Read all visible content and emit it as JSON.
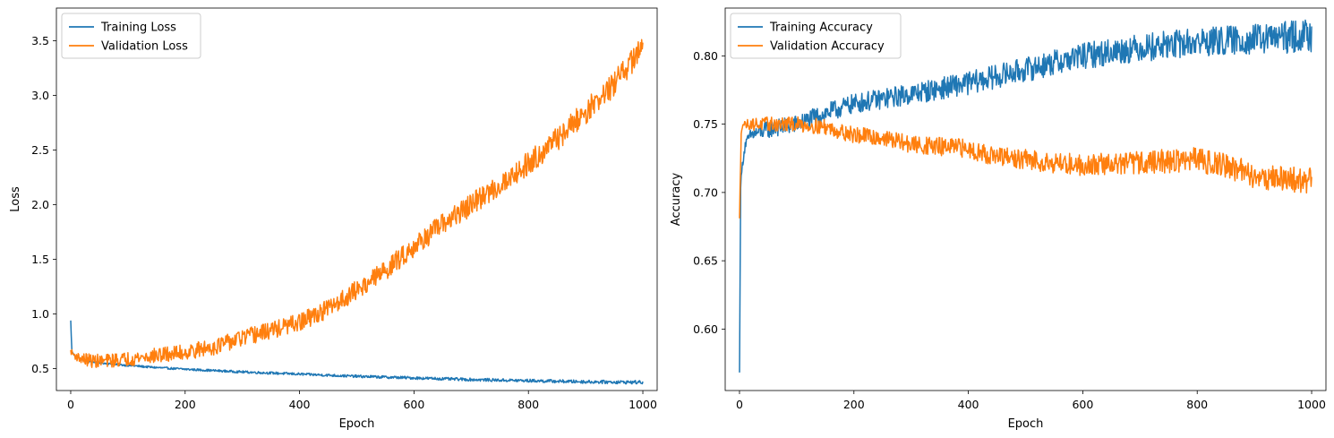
{
  "chart_data": [
    {
      "type": "line",
      "title": "",
      "xlabel": "Epoch",
      "ylabel": "Loss",
      "xlim": [
        -25,
        1025
      ],
      "ylim": [
        0.3,
        3.8
      ],
      "xticks": [
        0,
        200,
        400,
        600,
        800,
        1000
      ],
      "yticks": [
        0.5,
        1.0,
        1.5,
        2.0,
        2.5,
        3.0,
        3.5
      ],
      "xtick_labels": [
        "0",
        "200",
        "400",
        "600",
        "800",
        "1000"
      ],
      "ytick_labels": [
        "0.5",
        "1.0",
        "1.5",
        "2.0",
        "2.5",
        "3.0",
        "3.5"
      ],
      "grid": false,
      "legend": "upper left",
      "series": [
        {
          "name": "Training Loss",
          "color": "#1f77b4",
          "noise": 0.008,
          "x": [
            0,
            2,
            5,
            10,
            20,
            30,
            50,
            75,
            100,
            150,
            200,
            300,
            400,
            500,
            600,
            700,
            800,
            900,
            1000
          ],
          "y": [
            0.94,
            0.66,
            0.63,
            0.61,
            0.585,
            0.57,
            0.555,
            0.54,
            0.53,
            0.51,
            0.495,
            0.47,
            0.45,
            0.43,
            0.415,
            0.4,
            0.39,
            0.38,
            0.375
          ]
        },
        {
          "name": "Validation Loss",
          "color": "#ff7f0e",
          "noise": 0.06,
          "x": [
            0,
            5,
            10,
            20,
            40,
            60,
            100,
            150,
            200,
            250,
            300,
            350,
            400,
            450,
            500,
            550,
            600,
            650,
            700,
            750,
            800,
            850,
            900,
            950,
            1000
          ],
          "y": [
            0.66,
            0.63,
            0.61,
            0.59,
            0.57,
            0.57,
            0.59,
            0.62,
            0.65,
            0.7,
            0.78,
            0.85,
            0.92,
            1.05,
            1.22,
            1.4,
            1.62,
            1.82,
            2.0,
            2.18,
            2.38,
            2.6,
            2.85,
            3.1,
            3.45
          ]
        }
      ]
    },
    {
      "type": "line",
      "title": "",
      "xlabel": "Epoch",
      "ylabel": "Accuracy",
      "xlim": [
        -25,
        1025
      ],
      "ylim": [
        0.555,
        0.835
      ],
      "xticks": [
        0,
        200,
        400,
        600,
        800,
        1000
      ],
      "yticks": [
        0.6,
        0.65,
        0.7,
        0.75,
        0.8
      ],
      "xtick_labels": [
        "0",
        "200",
        "400",
        "600",
        "800",
        "1000"
      ],
      "ytick_labels": [
        "0.60",
        "0.65",
        "0.70",
        "0.75",
        "0.80"
      ],
      "grid": false,
      "legend": "upper left",
      "series": [
        {
          "name": "Training Accuracy",
          "color": "#1f77b4",
          "noise": 0.006,
          "x": [
            0,
            2,
            5,
            10,
            20,
            40,
            60,
            100,
            150,
            200,
            300,
            400,
            500,
            600,
            700,
            800,
            900,
            1000
          ],
          "y": [
            0.567,
            0.705,
            0.72,
            0.735,
            0.742,
            0.745,
            0.747,
            0.75,
            0.758,
            0.765,
            0.772,
            0.78,
            0.79,
            0.8,
            0.806,
            0.81,
            0.812,
            0.815
          ]
        },
        {
          "name": "Validation Accuracy",
          "color": "#ff7f0e",
          "noise": 0.005,
          "x": [
            0,
            3,
            5,
            10,
            50,
            100,
            150,
            200,
            250,
            300,
            400,
            450,
            500,
            600,
            700,
            800,
            850,
            900,
            1000
          ],
          "y": [
            0.68,
            0.745,
            0.75,
            0.75,
            0.75,
            0.75,
            0.748,
            0.742,
            0.74,
            0.735,
            0.732,
            0.726,
            0.724,
            0.72,
            0.722,
            0.724,
            0.72,
            0.712,
            0.708
          ]
        }
      ]
    }
  ]
}
